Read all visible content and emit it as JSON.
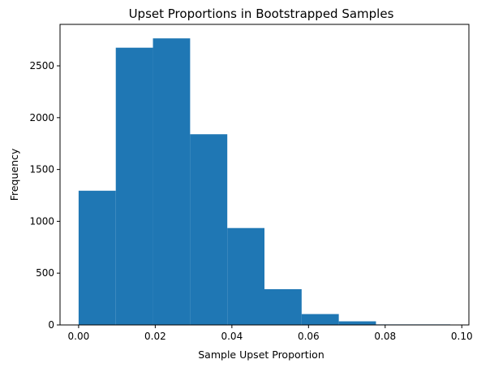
{
  "chart_data": {
    "type": "bar",
    "title": "Upset Proportions in Bootstrapped Samples",
    "xlabel": "Sample Upset Proportion",
    "ylabel": "Frequency",
    "bin_edges": [
      0.0,
      0.0097,
      0.0194,
      0.0291,
      0.0388,
      0.0485,
      0.0582,
      0.0679,
      0.0776,
      0.0873,
      0.097
    ],
    "values": [
      1295,
      2675,
      2765,
      1840,
      935,
      345,
      105,
      35,
      5,
      5
    ],
    "xlim": [
      -0.00485,
      0.10185
    ],
    "ylim": [
      0,
      2900
    ],
    "xticks": [
      0.0,
      0.02,
      0.04,
      0.06,
      0.08,
      0.1
    ],
    "xtick_labels": [
      "0.00",
      "0.02",
      "0.04",
      "0.06",
      "0.08",
      "0.10"
    ],
    "yticks": [
      0,
      500,
      1000,
      1500,
      2000,
      2500
    ],
    "ytick_labels": [
      "0",
      "500",
      "1000",
      "1500",
      "2000",
      "2500"
    ],
    "bar_color": "#1f77b4",
    "grid": false,
    "legend": "none"
  }
}
